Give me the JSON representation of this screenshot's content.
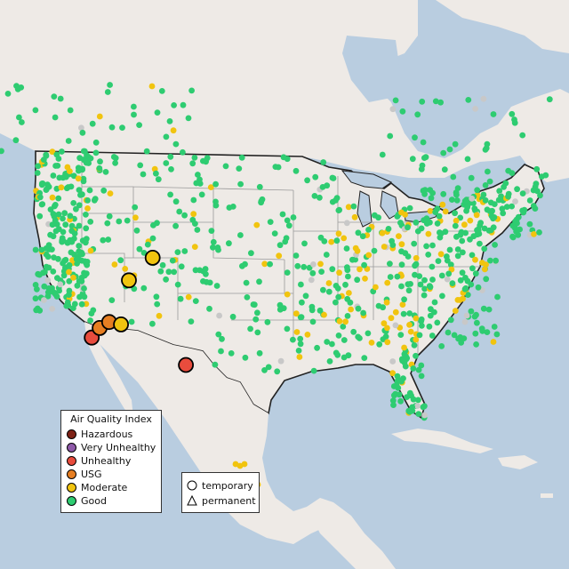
{
  "map": {
    "colors": {
      "ocean": "#b9cde0",
      "land": "#eeeae6",
      "boundary": "#222222",
      "state_line": "#9a9a9a"
    }
  },
  "legend": {
    "title": "Air Quality Index",
    "categories": [
      {
        "label": "Hazardous",
        "color": "#7e2216"
      },
      {
        "label": "Very Unhealthy",
        "color": "#8e59a8"
      },
      {
        "label": "Unhealthy",
        "color": "#e84c3d"
      },
      {
        "label": "USG",
        "color": "#e67e22"
      },
      {
        "label": "Moderate",
        "color": "#f1c40f"
      },
      {
        "label": "Good",
        "color": "#2ecc71"
      }
    ],
    "no_data_color": "#c8c8c8"
  },
  "shape_legend": {
    "temporary_label": "temporary",
    "permanent_label": "permanent"
  },
  "highlight_markers": [
    {
      "category": "Unhealthy",
      "shape": "temporary",
      "lon": -118.3,
      "lat": 34.1
    },
    {
      "category": "USG",
      "shape": "temporary",
      "lon": -117.3,
      "lat": 34.9
    },
    {
      "category": "USG",
      "shape": "temporary",
      "lon": -116.1,
      "lat": 35.4
    },
    {
      "category": "Moderate",
      "shape": "temporary",
      "lon": -114.6,
      "lat": 35.2
    },
    {
      "category": "Moderate",
      "shape": "temporary",
      "lon": -113.6,
      "lat": 38.9
    },
    {
      "category": "Moderate",
      "shape": "temporary",
      "lon": -110.6,
      "lat": 40.8
    },
    {
      "category": "Unhealthy",
      "shape": "temporary",
      "lon": -106.4,
      "lat": 31.8
    }
  ]
}
